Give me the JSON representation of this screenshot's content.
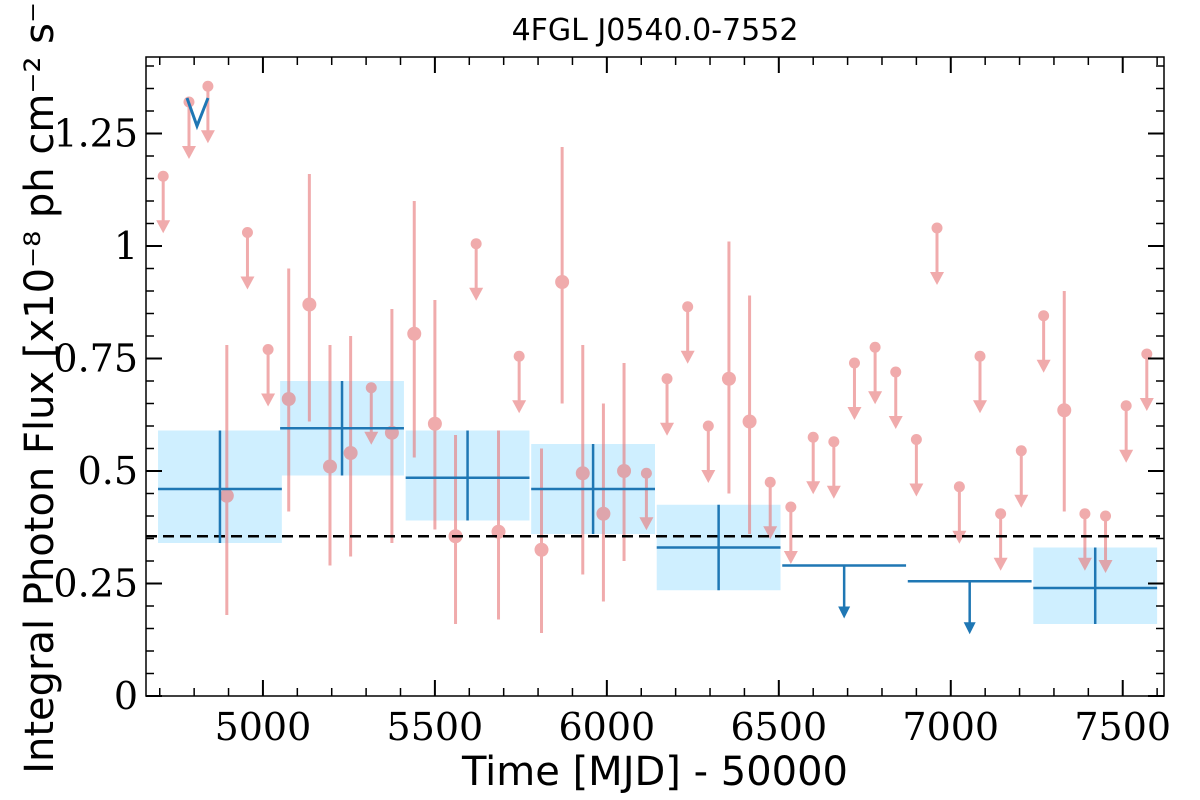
{
  "chart_data": {
    "type": "scatter",
    "title": "4FGL J0540.0-7552",
    "xlabel": "Time [MJD] - 50000",
    "ylabel": "Integral Photon Flux [x10⁻⁸ ph cm⁻² s⁻¹]",
    "xlim": [
      4660,
      7620
    ],
    "ylim": [
      0,
      1.42
    ],
    "x_ticks": [
      {
        "value": 5000,
        "label": "5000"
      },
      {
        "value": 5500,
        "label": "5500"
      },
      {
        "value": 6000,
        "label": "6000"
      },
      {
        "value": 6500,
        "label": "6500"
      },
      {
        "value": 7000,
        "label": "7000"
      },
      {
        "value": 7500,
        "label": "7500"
      }
    ],
    "y_ticks": [
      {
        "value": 0,
        "label": "0"
      },
      {
        "value": 0.25,
        "label": "0.25"
      },
      {
        "value": 0.5,
        "label": "0.5"
      },
      {
        "value": 0.75,
        "label": "0.75"
      },
      {
        "value": 1,
        "label": "1"
      },
      {
        "value": 1.25,
        "label": "1.25"
      }
    ],
    "mean_flux": 0.355,
    "colors": {
      "short_bins": "#e8787a",
      "long_bins": "#1f77b4",
      "band": "#cfefff",
      "mean_line": "#000000"
    },
    "series": [
      {
        "kind": "long-bins",
        "points": [
          {
            "x": 4875,
            "xerr": 180,
            "y": 0.46,
            "ylo": 0.34,
            "yhi": 0.59,
            "upper_limit": false
          },
          {
            "x": 5230,
            "xerr": 180,
            "y": 0.595,
            "ylo": 0.49,
            "yhi": 0.7,
            "upper_limit": false
          },
          {
            "x": 5595,
            "xerr": 180,
            "y": 0.485,
            "ylo": 0.39,
            "yhi": 0.59,
            "upper_limit": false
          },
          {
            "x": 5960,
            "xerr": 180,
            "y": 0.46,
            "ylo": 0.36,
            "yhi": 0.56,
            "upper_limit": false
          },
          {
            "x": 6325,
            "xerr": 180,
            "y": 0.33,
            "ylo": 0.235,
            "yhi": 0.425,
            "upper_limit": false
          },
          {
            "x": 6690,
            "xerr": 180,
            "y": 0.29,
            "upper_limit": true
          },
          {
            "x": 7055,
            "xerr": 180,
            "y": 0.255,
            "upper_limit": true
          },
          {
            "x": 7420,
            "xerr": 180,
            "y": 0.24,
            "ylo": 0.16,
            "yhi": 0.33,
            "upper_limit": false
          }
        ]
      },
      {
        "kind": "short-bins",
        "points": [
          {
            "x": 4710,
            "y": 1.155,
            "upper_limit": true
          },
          {
            "x": 4785,
            "y": 1.32,
            "upper_limit": true
          },
          {
            "x": 4840,
            "y": 1.355,
            "upper_limit": true
          },
          {
            "x": 4895,
            "y": 0.445,
            "ylo": 0.18,
            "yhi": 0.78,
            "upper_limit": false
          },
          {
            "x": 4955,
            "y": 1.03,
            "upper_limit": true
          },
          {
            "x": 5015,
            "y": 0.77,
            "upper_limit": true
          },
          {
            "x": 5075,
            "y": 0.66,
            "ylo": 0.41,
            "yhi": 0.95,
            "upper_limit": false
          },
          {
            "x": 5135,
            "y": 0.87,
            "ylo": 0.61,
            "yhi": 1.16,
            "upper_limit": false
          },
          {
            "x": 5195,
            "y": 0.51,
            "ylo": 0.29,
            "yhi": 0.78,
            "upper_limit": false
          },
          {
            "x": 5255,
            "y": 0.54,
            "ylo": 0.31,
            "yhi": 0.8,
            "upper_limit": false
          },
          {
            "x": 5315,
            "y": 0.685,
            "upper_limit": true
          },
          {
            "x": 5375,
            "y": 0.585,
            "ylo": 0.34,
            "yhi": 0.86,
            "upper_limit": false
          },
          {
            "x": 5440,
            "y": 0.805,
            "ylo": 0.53,
            "yhi": 1.1,
            "upper_limit": false
          },
          {
            "x": 5500,
            "y": 0.605,
            "ylo": 0.37,
            "yhi": 0.88,
            "upper_limit": false
          },
          {
            "x": 5560,
            "y": 0.355,
            "ylo": 0.16,
            "yhi": 0.58,
            "upper_limit": false
          },
          {
            "x": 5620,
            "y": 1.005,
            "upper_limit": true
          },
          {
            "x": 5685,
            "y": 0.365,
            "ylo": 0.17,
            "yhi": 0.59,
            "upper_limit": false
          },
          {
            "x": 5745,
            "y": 0.755,
            "upper_limit": true
          },
          {
            "x": 5810,
            "y": 0.325,
            "ylo": 0.14,
            "yhi": 0.55,
            "upper_limit": false
          },
          {
            "x": 5870,
            "y": 0.92,
            "ylo": 0.65,
            "yhi": 1.22,
            "upper_limit": false
          },
          {
            "x": 5930,
            "y": 0.495,
            "ylo": 0.27,
            "yhi": 0.78,
            "upper_limit": false
          },
          {
            "x": 5990,
            "y": 0.405,
            "ylo": 0.21,
            "yhi": 0.65,
            "upper_limit": false
          },
          {
            "x": 6050,
            "y": 0.5,
            "ylo": 0.3,
            "yhi": 0.74,
            "upper_limit": false
          },
          {
            "x": 6115,
            "y": 0.495,
            "upper_limit": true
          },
          {
            "x": 6175,
            "y": 0.705,
            "upper_limit": true
          },
          {
            "x": 6235,
            "y": 0.865,
            "upper_limit": true
          },
          {
            "x": 6295,
            "y": 0.6,
            "upper_limit": true
          },
          {
            "x": 6355,
            "y": 0.705,
            "ylo": 0.45,
            "yhi": 1.01,
            "upper_limit": false
          },
          {
            "x": 6415,
            "y": 0.61,
            "ylo": 0.36,
            "yhi": 0.89,
            "upper_limit": false
          },
          {
            "x": 6475,
            "y": 0.475,
            "upper_limit": true
          },
          {
            "x": 6535,
            "y": 0.42,
            "upper_limit": true
          },
          {
            "x": 6600,
            "y": 0.575,
            "upper_limit": true
          },
          {
            "x": 6660,
            "y": 0.565,
            "upper_limit": true
          },
          {
            "x": 6720,
            "y": 0.74,
            "upper_limit": true
          },
          {
            "x": 6780,
            "y": 0.775,
            "upper_limit": true
          },
          {
            "x": 6840,
            "y": 0.72,
            "upper_limit": true
          },
          {
            "x": 6900,
            "y": 0.57,
            "upper_limit": true
          },
          {
            "x": 6960,
            "y": 1.04,
            "upper_limit": true
          },
          {
            "x": 7025,
            "y": 0.465,
            "upper_limit": true
          },
          {
            "x": 7085,
            "y": 0.755,
            "upper_limit": true
          },
          {
            "x": 7145,
            "y": 0.405,
            "upper_limit": true
          },
          {
            "x": 7205,
            "y": 0.545,
            "upper_limit": true
          },
          {
            "x": 7270,
            "y": 0.845,
            "upper_limit": true
          },
          {
            "x": 7330,
            "y": 0.635,
            "ylo": 0.41,
            "yhi": 0.9,
            "upper_limit": false
          },
          {
            "x": 7390,
            "y": 0.405,
            "upper_limit": true
          },
          {
            "x": 7450,
            "y": 0.4,
            "upper_limit": true
          },
          {
            "x": 7510,
            "y": 0.645,
            "upper_limit": true
          },
          {
            "x": 7570,
            "y": 0.76,
            "upper_limit": true
          }
        ]
      }
    ]
  }
}
